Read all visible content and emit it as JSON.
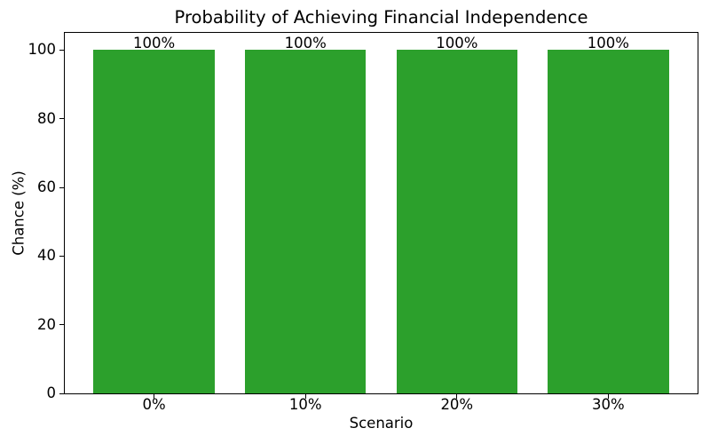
{
  "figure": {
    "background": "#ffffff",
    "text_color": "#000000",
    "spine_color": "#000000"
  },
  "chart_data": {
    "type": "bar",
    "title": "Probability of Achieving Financial Independence",
    "xlabel": "Scenario",
    "ylabel": "Chance (%)",
    "categories": [
      "0%",
      "10%",
      "20%",
      "30%"
    ],
    "values": [
      100,
      100,
      100,
      100
    ],
    "bar_labels": [
      "100%",
      "100%",
      "100%",
      "100%"
    ],
    "bar_color": "#2ca02c",
    "ylim": [
      0,
      105
    ],
    "yticks": [
      0,
      20,
      40,
      60,
      80,
      100
    ],
    "grid": false,
    "legend_position": "none"
  }
}
